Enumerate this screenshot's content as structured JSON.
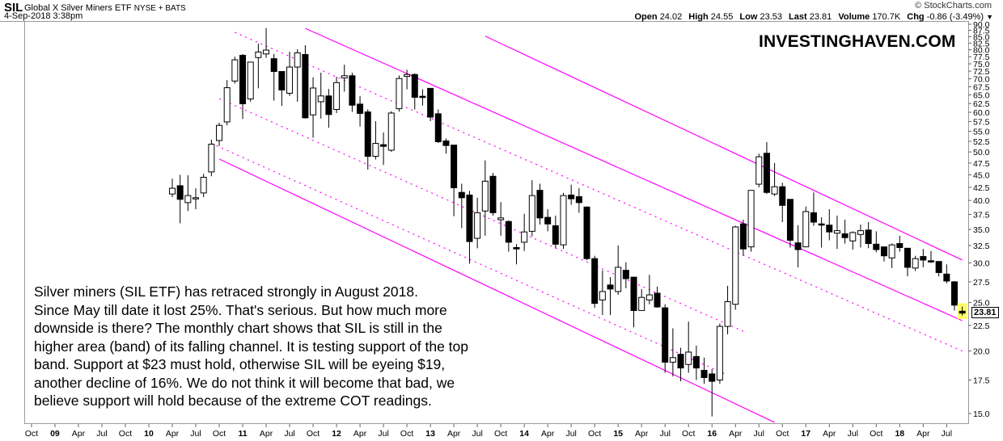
{
  "header": {
    "symbol": "SIL",
    "name": "Global X Silver Miners ETF",
    "exchange": "NYSE + BATS",
    "date": "4-Sep-2018 3:38pm",
    "credit": "© StockCharts.com",
    "quote": {
      "open_label": "Open",
      "open": "24.02",
      "high_label": "High",
      "high": "24.55",
      "low_label": "Low",
      "low": "23.53",
      "last_label": "Last",
      "last": "23.81",
      "volume_label": "Volume",
      "volume": "170.7K",
      "chg_label": "Chg",
      "chg": "-0.86 (-3.49%)",
      "menu_icon": "triangle-down-icon"
    }
  },
  "brand": "INVESTINGHAVEN.COM",
  "annotation": [
    "Silver miners (SIL ETF) has retraced strongly in August 2018.",
    "Since May till date it lost 25%. That's serious. But how much more",
    "downside is there? The monthly chart shows that SIL is still in the",
    "higher area (band) of its falling channel. It is testing support of the top",
    "band. Support at $23 must hold, otherwise SIL will be eyeing $19,",
    "another decline of 16%. We do not think it will become that bad, we",
    "believe support will hold because of the extreme COT readings."
  ],
  "last_price_label": "23.81",
  "colors": {
    "up": "#ffffff",
    "down": "#000000",
    "trend": "#ff00ff",
    "highlight": "#ffff66"
  },
  "chart_data": {
    "type": "candlestick",
    "interval": "monthly",
    "scale": "log",
    "ylim": [
      14.2,
      91
    ],
    "yticks": [
      "15.0",
      "17.5",
      "20.0",
      "22.5",
      "25.0",
      "27.5",
      "30.0",
      "32.5",
      "35.0",
      "37.5",
      "40.0",
      "42.5",
      "45.0",
      "47.5",
      "50.0",
      "52.5",
      "55.0",
      "57.5",
      "60.0",
      "62.5",
      "65.0",
      "67.5",
      "70.0",
      "72.5",
      "75.0",
      "77.5",
      "80.0",
      "82.5",
      "85.0",
      "87.5",
      "90.0"
    ],
    "xlabels": [
      [
        "2008-10",
        "Oct",
        false
      ],
      [
        "2009-01",
        "09",
        true
      ],
      [
        "2009-04",
        "Apr",
        false
      ],
      [
        "2009-07",
        "Jul",
        false
      ],
      [
        "2009-10",
        "Oct",
        false
      ],
      [
        "2010-01",
        "10",
        true
      ],
      [
        "2010-04",
        "Apr",
        false
      ],
      [
        "2010-07",
        "Jul",
        false
      ],
      [
        "2010-10",
        "Oct",
        false
      ],
      [
        "2011-01",
        "11",
        true
      ],
      [
        "2011-04",
        "Apr",
        false
      ],
      [
        "2011-07",
        "Jul",
        false
      ],
      [
        "2011-10",
        "Oct",
        false
      ],
      [
        "2012-01",
        "12",
        true
      ],
      [
        "2012-04",
        "Apr",
        false
      ],
      [
        "2012-07",
        "Jul",
        false
      ],
      [
        "2012-10",
        "Oct",
        false
      ],
      [
        "2013-01",
        "13",
        true
      ],
      [
        "2013-04",
        "Apr",
        false
      ],
      [
        "2013-07",
        "Jul",
        false
      ],
      [
        "2013-10",
        "Oct",
        false
      ],
      [
        "2014-01",
        "14",
        true
      ],
      [
        "2014-04",
        "Apr",
        false
      ],
      [
        "2014-07",
        "Jul",
        false
      ],
      [
        "2014-10",
        "Oct",
        false
      ],
      [
        "2015-01",
        "15",
        true
      ],
      [
        "2015-04",
        "Apr",
        false
      ],
      [
        "2015-07",
        "Jul",
        false
      ],
      [
        "2015-10",
        "Oct",
        false
      ],
      [
        "2016-01",
        "16",
        true
      ],
      [
        "2016-04",
        "Apr",
        false
      ],
      [
        "2016-07",
        "Jul",
        false
      ],
      [
        "2016-10",
        "Oct",
        false
      ],
      [
        "2017-01",
        "17",
        true
      ],
      [
        "2017-04",
        "Apr",
        false
      ],
      [
        "2017-07",
        "Jul",
        false
      ],
      [
        "2017-10",
        "Oct",
        false
      ],
      [
        "2018-01",
        "18",
        true
      ],
      [
        "2018-04",
        "Apr",
        false
      ],
      [
        "2018-07",
        "Jul",
        false
      ]
    ],
    "first_bar": "2010-04",
    "ohlc": [
      [
        41.2,
        44.2,
        40.6,
        42.3
      ],
      [
        42.8,
        45.0,
        36.0,
        40.2
      ],
      [
        39.6,
        44.9,
        38.1,
        40.9
      ],
      [
        40.5,
        42.3,
        38.4,
        40.5
      ],
      [
        41.4,
        45.2,
        40.6,
        44.5
      ],
      [
        45.6,
        52.9,
        44.7,
        51.8
      ],
      [
        52.7,
        57.2,
        51.4,
        56.5
      ],
      [
        57.4,
        69.6,
        56.5,
        67.2
      ],
      [
        69.3,
        77.5,
        68.5,
        76.4
      ],
      [
        78.0,
        78.5,
        58.2,
        62.4
      ],
      [
        63.8,
        75.6,
        63.0,
        75.6
      ],
      [
        77.2,
        82.3,
        67.0,
        79.2
      ],
      [
        78.5,
        88.4,
        77.1,
        79.9
      ],
      [
        76.8,
        78.5,
        63.3,
        72.4
      ],
      [
        72.4,
        72.4,
        61.8,
        66.5
      ],
      [
        65.5,
        79.3,
        64.7,
        73.9
      ],
      [
        73.9,
        80.2,
        63.0,
        78.9
      ],
      [
        78.3,
        81.7,
        58.3,
        58.5
      ],
      [
        59.3,
        70.5,
        53.4,
        67.1
      ],
      [
        63.0,
        72.0,
        58.3,
        64.7
      ],
      [
        64.7,
        66.8,
        55.9,
        59.4
      ],
      [
        60.8,
        70.7,
        59.8,
        68.8
      ],
      [
        70.3,
        74.7,
        66.0,
        71.0
      ],
      [
        71.0,
        72.0,
        60.1,
        62.0
      ],
      [
        62.3,
        64.7,
        56.2,
        59.7
      ],
      [
        60.1,
        60.8,
        46.1,
        49.0
      ],
      [
        49.0,
        57.6,
        48.3,
        52.0
      ],
      [
        51.7,
        54.7,
        47.1,
        51.3
      ],
      [
        50.4,
        60.3,
        50.0,
        59.8
      ],
      [
        61.0,
        71.1,
        60.2,
        70.1
      ],
      [
        70.8,
        73.0,
        66.7,
        71.4
      ],
      [
        71.4,
        71.8,
        60.8,
        64.3
      ],
      [
        64.6,
        66.7,
        61.9,
        64.4
      ],
      [
        67.0,
        67.0,
        57.6,
        58.7
      ],
      [
        59.6,
        60.8,
        52.1,
        52.4
      ],
      [
        52.6,
        53.2,
        49.6,
        51.5
      ],
      [
        51.6,
        51.6,
        37.2,
        42.4
      ],
      [
        41.5,
        43.2,
        35.2,
        40.5
      ],
      [
        41.0,
        41.8,
        29.9,
        33.1
      ],
      [
        33.6,
        40.5,
        32.1,
        37.8
      ],
      [
        38.1,
        48.1,
        34.0,
        43.7
      ],
      [
        44.7,
        45.4,
        37.3,
        37.8
      ],
      [
        36.6,
        39.7,
        34.0,
        36.9
      ],
      [
        36.3,
        36.5,
        31.6,
        33.0
      ],
      [
        32.2,
        32.7,
        29.8,
        32.0
      ],
      [
        33.0,
        37.6,
        31.7,
        34.6
      ],
      [
        34.7,
        43.9,
        33.9,
        40.9
      ],
      [
        41.9,
        43.2,
        35.8,
        36.9
      ],
      [
        37.0,
        38.4,
        34.7,
        35.9
      ],
      [
        35.6,
        37.3,
        32.1,
        32.7
      ],
      [
        32.6,
        41.4,
        32.0,
        40.9
      ],
      [
        41.0,
        43.0,
        39.2,
        40.3
      ],
      [
        40.7,
        42.3,
        37.8,
        39.6
      ],
      [
        38.8,
        38.9,
        30.4,
        30.6
      ],
      [
        30.6,
        31.0,
        24.4,
        24.9
      ],
      [
        25.3,
        29.0,
        23.6,
        26.3
      ],
      [
        27.1,
        28.1,
        23.6,
        26.6
      ],
      [
        26.3,
        32.5,
        25.9,
        29.4
      ],
      [
        29.0,
        30.1,
        26.7,
        27.9
      ],
      [
        28.1,
        28.1,
        22.3,
        24.1
      ],
      [
        24.1,
        26.6,
        24.1,
        25.6
      ],
      [
        25.3,
        28.4,
        24.8,
        25.9
      ],
      [
        26.1,
        26.9,
        24.4,
        24.5
      ],
      [
        24.4,
        24.8,
        18.1,
        19.0
      ],
      [
        19.0,
        22.2,
        17.8,
        19.4
      ],
      [
        19.7,
        20.3,
        17.4,
        18.5
      ],
      [
        18.8,
        22.9,
        18.1,
        19.9
      ],
      [
        19.5,
        20.5,
        17.5,
        18.5
      ],
      [
        18.3,
        19.4,
        17.2,
        17.7
      ],
      [
        18.0,
        18.4,
        14.8,
        17.4
      ],
      [
        17.5,
        22.7,
        17.2,
        22.4
      ],
      [
        22.4,
        27.0,
        21.6,
        25.1
      ],
      [
        24.8,
        35.6,
        24.2,
        35.4
      ],
      [
        35.9,
        36.6,
        31.0,
        32.0
      ],
      [
        32.3,
        41.9,
        31.6,
        41.9
      ],
      [
        43.1,
        49.6,
        42.5,
        48.9
      ],
      [
        49.7,
        52.3,
        41.2,
        41.5
      ],
      [
        41.2,
        47.5,
        40.8,
        42.6
      ],
      [
        42.6,
        43.4,
        36.2,
        39.1
      ],
      [
        40.2,
        40.2,
        32.2,
        33.3
      ],
      [
        32.9,
        35.7,
        29.4,
        31.9
      ],
      [
        32.3,
        38.9,
        32.3,
        38.0
      ],
      [
        37.8,
        41.5,
        35.6,
        36.2
      ],
      [
        35.9,
        37.0,
        32.2,
        35.8
      ],
      [
        35.7,
        38.4,
        33.3,
        34.6
      ],
      [
        34.4,
        37.3,
        32.0,
        34.8
      ],
      [
        34.3,
        36.6,
        32.8,
        33.7
      ],
      [
        33.2,
        34.7,
        31.9,
        34.5
      ],
      [
        34.2,
        35.8,
        32.2,
        34.8
      ],
      [
        34.9,
        36.2,
        32.1,
        32.8
      ],
      [
        32.7,
        34.7,
        31.5,
        31.9
      ],
      [
        32.3,
        32.3,
        30.2,
        31.0
      ],
      [
        30.7,
        32.8,
        29.3,
        32.6
      ],
      [
        32.8,
        34.0,
        31.6,
        32.2
      ],
      [
        32.1,
        32.1,
        28.2,
        29.4
      ],
      [
        29.3,
        31.0,
        28.9,
        30.6
      ],
      [
        30.9,
        32.0,
        29.4,
        30.4
      ],
      [
        30.3,
        31.7,
        30.0,
        30.2
      ],
      [
        30.2,
        30.2,
        28.2,
        28.7
      ],
      [
        28.5,
        29.8,
        27.3,
        27.6
      ],
      [
        27.5,
        27.6,
        24.1,
        24.7
      ],
      [
        24.02,
        24.55,
        23.53,
        23.81
      ]
    ],
    "trendlines": [
      {
        "style": "solid",
        "from": [
          "2010-10",
          48.4
        ],
        "to": [
          "2016-09",
          14.4
        ]
      },
      {
        "style": "solid",
        "from": [
          "2011-09",
          88.3
        ],
        "to": [
          "2018-09",
          23.0
        ]
      },
      {
        "style": "solid",
        "from": [
          "2013-08",
          85.2
        ],
        "to": [
          "2018-09",
          30.4
        ]
      },
      {
        "style": "dotted",
        "from": [
          "2010-12",
          86.7
        ],
        "to": [
          "2018-09",
          20.0
        ]
      },
      {
        "style": "dotted",
        "from": [
          "2010-10",
          63.9
        ],
        "to": [
          "2016-05",
          21.9
        ]
      },
      {
        "style": "dotted",
        "from": [
          "2010-09",
          52.0
        ],
        "to": [
          "2016-03",
          17.9
        ]
      }
    ]
  }
}
